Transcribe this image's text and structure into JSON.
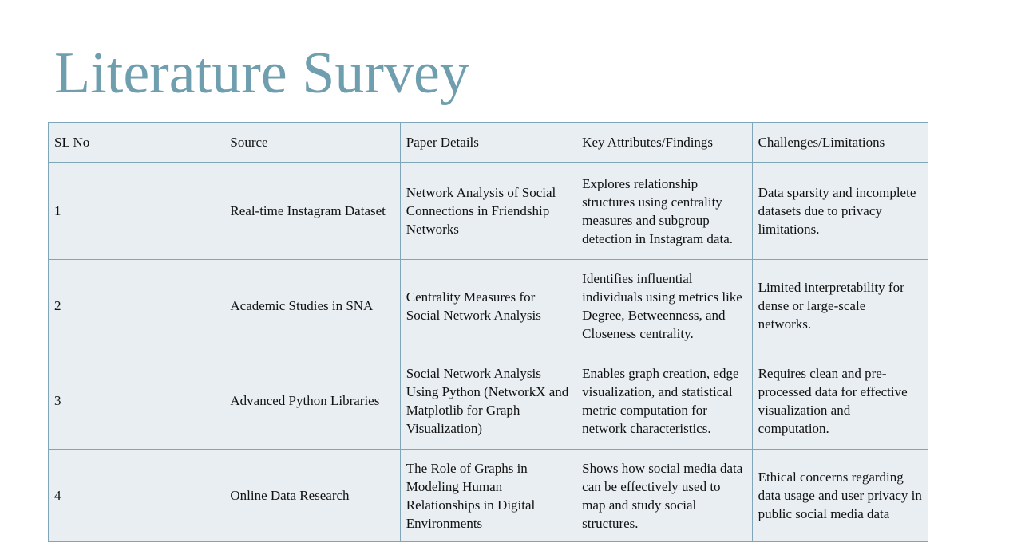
{
  "slide": {
    "title": "Literature Survey"
  },
  "table": {
    "headers": [
      "SL No",
      "Source",
      "Paper Details",
      "Key Attributes/Findings",
      "Challenges/Limitations"
    ],
    "rows": [
      [
        "1",
        "Real-time Instagram Dataset",
        "Network Analysis of Social Connections in Friendship Networks",
        "Explores relationship structures using centrality measures and subgroup detection in Instagram data.",
        "Data sparsity and incomplete datasets due to privacy limitations."
      ],
      [
        "2",
        "Academic Studies in SNA",
        "Centrality Measures for Social Network Analysis",
        "Identifies influential individuals using metrics like Degree, Betweenness, and Closeness centrality.",
        "Limited interpretability for dense or large-scale networks."
      ],
      [
        "3",
        "Advanced Python Libraries",
        "Social Network Analysis Using Python (NetworkX and Matplotlib for Graph Visualization)",
        "Enables graph creation, edge visualization, and statistical metric computation for network characteristics.",
        "Requires clean and pre-processed data for effective visualization and computation."
      ],
      [
        "4",
        "Online Data Research",
        "The Role of Graphs in Modeling Human Relationships in Digital Environments",
        "Shows how social media data can be effectively used to map and study social structures.",
        "Ethical concerns regarding data usage and user privacy in public social media data"
      ]
    ]
  },
  "colors": {
    "title": "#6f9eaf",
    "cell_bg": "#e9eef2",
    "border": "#7fa6b8"
  }
}
